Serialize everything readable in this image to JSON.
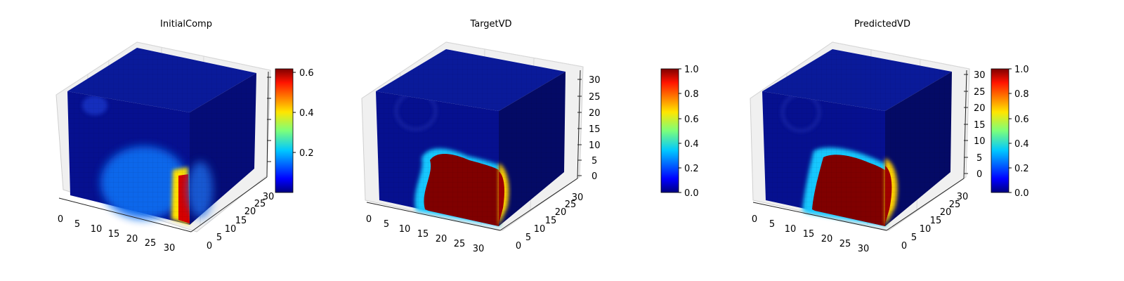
{
  "chart_data": [
    {
      "type": "voxel-3d",
      "title": "InitialComp",
      "x_ticks": [
        "0",
        "5",
        "10",
        "15",
        "20",
        "25",
        "30"
      ],
      "y_ticks": [
        "0",
        "5",
        "10",
        "15",
        "20",
        "25",
        "30"
      ],
      "z_ticks": [],
      "colormap": "jet",
      "colorbar": {
        "range": [
          0.0,
          0.62
        ],
        "tick_labels": [
          "0.2",
          "0.4",
          "0.6"
        ],
        "tick_values": [
          0.2,
          0.4,
          0.6
        ]
      },
      "grid": true,
      "background_level": 0.05,
      "blob_level": 0.18,
      "hot_level": 0.6
    },
    {
      "type": "voxel-3d",
      "title": "TargetVD",
      "x_ticks": [
        "0",
        "5",
        "10",
        "15",
        "20",
        "25",
        "30"
      ],
      "y_ticks": [
        "0",
        "5",
        "10",
        "15",
        "20",
        "25",
        "30"
      ],
      "z_ticks": [
        "0",
        "5",
        "10",
        "15",
        "20",
        "25",
        "30"
      ],
      "colormap": "jet",
      "colorbar": {
        "range": [
          0.0,
          1.0
        ],
        "tick_labels": [
          "0.0",
          "0.2",
          "0.4",
          "0.6",
          "0.8",
          "1.0"
        ],
        "tick_values": [
          0,
          0.2,
          0.4,
          0.6,
          0.8,
          1.0
        ]
      },
      "grid": true,
      "background_level": 0.05,
      "hot_level": 1.0
    },
    {
      "type": "voxel-3d",
      "title": "PredictedVD",
      "x_ticks": [
        "0",
        "5",
        "10",
        "15",
        "20",
        "25",
        "30"
      ],
      "y_ticks": [
        "0",
        "5",
        "10",
        "15",
        "20",
        "25",
        "30"
      ],
      "z_ticks": [
        "0",
        "5",
        "10",
        "15",
        "20",
        "25",
        "30"
      ],
      "colormap": "jet",
      "colorbar": {
        "range": [
          0.0,
          1.0
        ],
        "tick_labels": [
          "0.0",
          "0.2",
          "0.4",
          "0.6",
          "0.8",
          "1.0"
        ],
        "tick_values": [
          0,
          0.2,
          0.4,
          0.6,
          0.8,
          1.0
        ]
      },
      "grid": true,
      "background_level": 0.05,
      "hot_level": 1.0
    }
  ]
}
